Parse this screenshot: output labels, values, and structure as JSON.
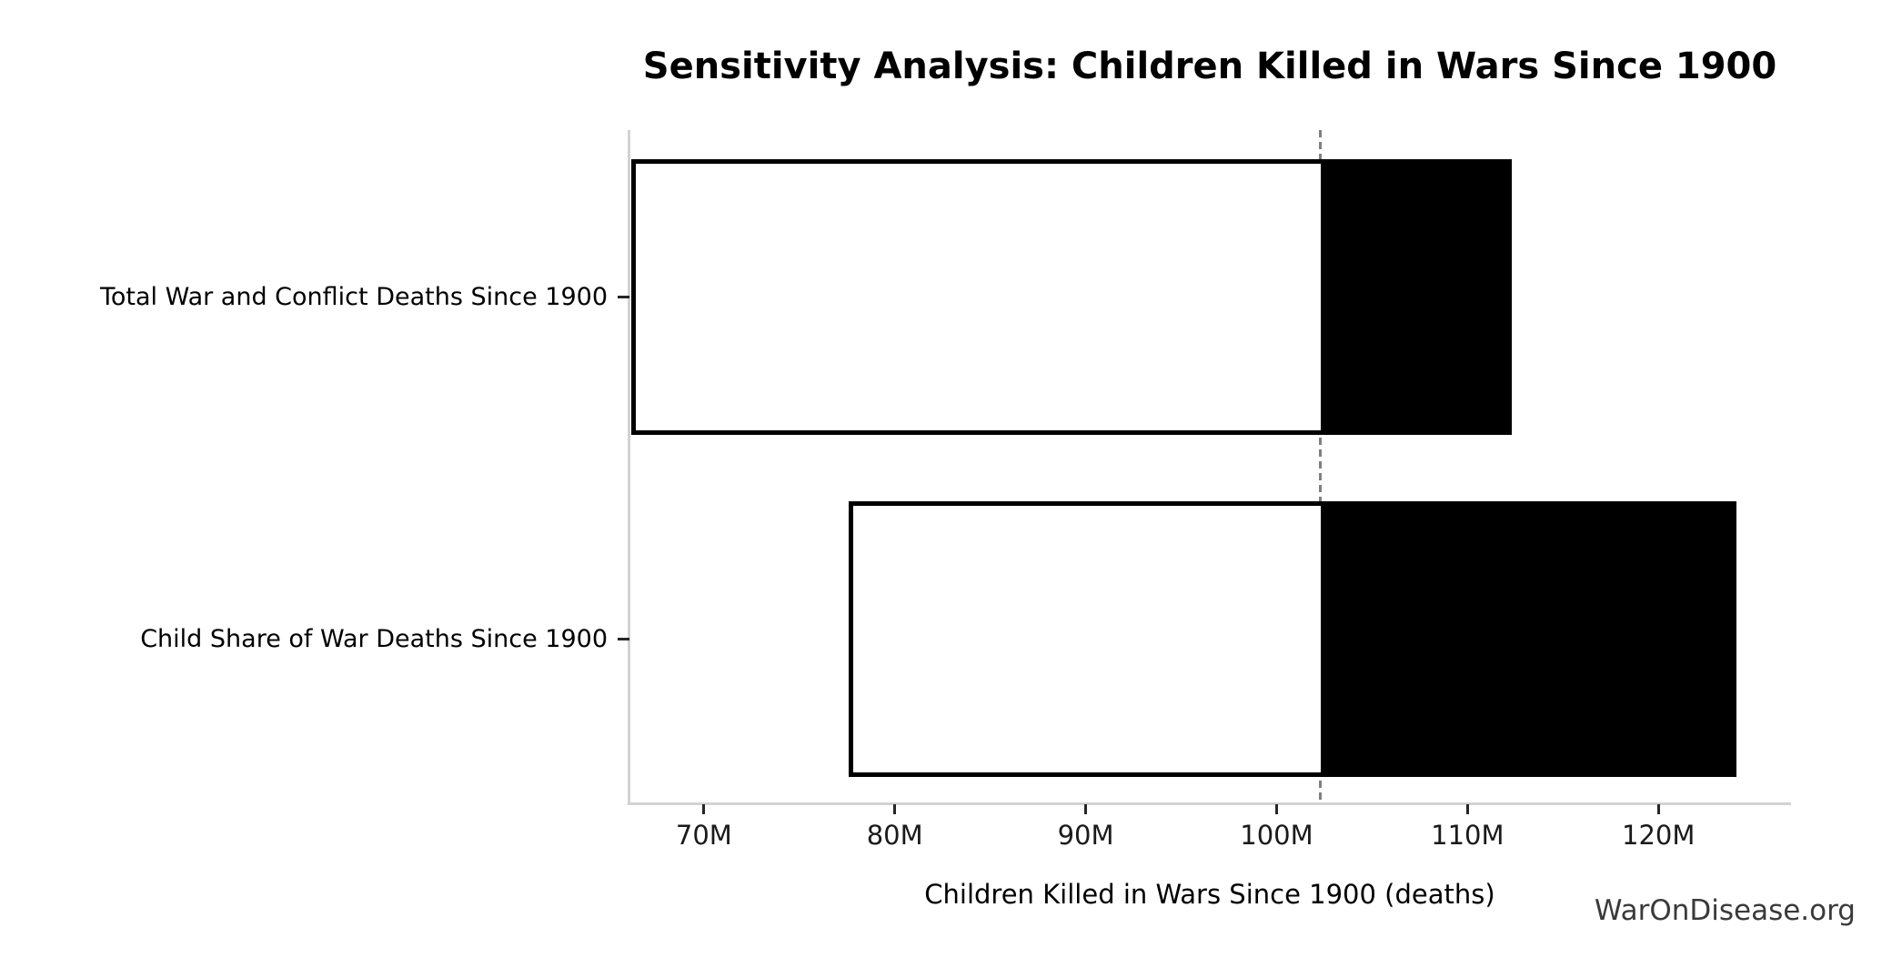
{
  "chart_data": {
    "type": "bar",
    "variant": "tornado-sensitivity",
    "orientation": "horizontal",
    "title": "Sensitivity Analysis: Children Killed in Wars Since 1900",
    "xlabel": "Children Killed in Wars Since 1900 (deaths)",
    "watermark": "WarOnDisease.org",
    "unit": "millions of deaths",
    "grid": false,
    "legend": "none",
    "baseline_value": 102.3,
    "baseline_line_style": "dashed",
    "xlim": [
      66.1,
      126.9
    ],
    "xticks": [
      {
        "value": 70,
        "label": "70M"
      },
      {
        "value": 80,
        "label": "80M"
      },
      {
        "value": 90,
        "label": "90M"
      },
      {
        "value": 100,
        "label": "100M"
      },
      {
        "value": 110,
        "label": "110M"
      },
      {
        "value": 120,
        "label": "120M"
      }
    ],
    "categories": [
      "Total War and Conflict Deaths Since 1900",
      "Child Share of War Deaths Since 1900"
    ],
    "bars": [
      {
        "label": "Total War and Conflict Deaths Since 1900",
        "low": 66.2,
        "high": 112.3
      },
      {
        "label": "Child Share of War Deaths Since 1900",
        "low": 77.6,
        "high": 124.1
      }
    ],
    "colors": {
      "low_segment_fill": "#ffffff",
      "high_segment_fill": "#000000",
      "bar_edge": "#000000",
      "baseline_line": "#7f7f7f",
      "axis_spine": "#d2d2d2",
      "tick_mark": "#262626",
      "text": "#000000",
      "watermark_text": "#3a3a3a"
    }
  }
}
